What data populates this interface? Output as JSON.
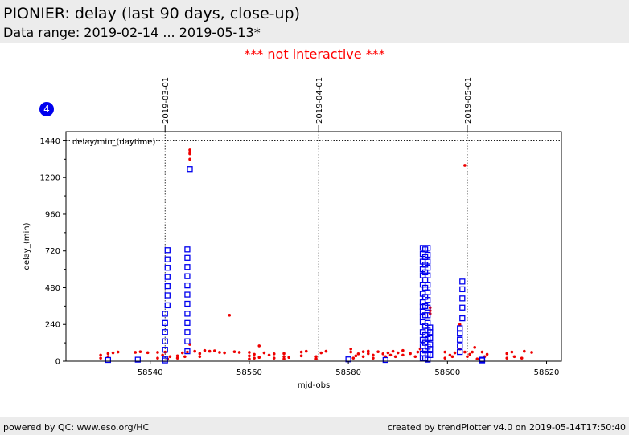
{
  "header": {
    "title": "PIONIER: delay (last 90 days, close-up)",
    "subtitle": "Data range: 2019-02-14 ... 2019-05-13*"
  },
  "notice": "*** not interactive ***",
  "badge": "4",
  "footer": {
    "left": "powered by QC: www.eso.org/HC",
    "right": "created by trendPlotter v4.0 on 2019-05-14T17:50:40"
  },
  "chart_data": {
    "type": "scatter",
    "title": "delay/min_(daytime)",
    "xlabel": "mjd-obs",
    "ylabel": "delay_(min)",
    "xlim": [
      58523,
      58623
    ],
    "ylim": [
      0,
      1500
    ],
    "xticks": [
      58540,
      58560,
      58580,
      58600,
      58620
    ],
    "yticks": [
      0,
      240,
      480,
      720,
      960,
      1200,
      1440
    ],
    "hlines": [
      1440,
      60
    ],
    "date_markers": [
      {
        "label": "2019-03-01",
        "mjd": 58543
      },
      {
        "label": "2019-04-01",
        "mjd": 58574
      },
      {
        "label": "2019-05-01",
        "mjd": 58604
      }
    ],
    "colors": {
      "daytime": "#ee0000",
      "nighttime": "#0000ee"
    },
    "series": [
      {
        "marker": "dot",
        "color": "#ee0000",
        "points": [
          [
            58530,
            20
          ],
          [
            58530,
            40
          ],
          [
            58531.5,
            30
          ],
          [
            58531.5,
            50
          ],
          [
            58532.5,
            55
          ],
          [
            58533.5,
            60
          ],
          [
            58537,
            58
          ],
          [
            58538,
            62
          ],
          [
            58539.5,
            56
          ],
          [
            58541.5,
            20
          ],
          [
            58541.5,
            58
          ],
          [
            58542.5,
            40
          ],
          [
            58543,
            60
          ],
          [
            58543.5,
            15
          ],
          [
            58544,
            30
          ],
          [
            58545.5,
            20
          ],
          [
            58545.5,
            35
          ],
          [
            58546.5,
            55
          ],
          [
            58547,
            30
          ],
          [
            58547.5,
            60
          ],
          [
            58548,
            1380
          ],
          [
            58548,
            1365
          ],
          [
            58548,
            1355
          ],
          [
            58548,
            1320
          ],
          [
            58548,
            110
          ],
          [
            58549,
            65
          ],
          [
            58550,
            30
          ],
          [
            58550,
            50
          ],
          [
            58551,
            70
          ],
          [
            58552,
            65
          ],
          [
            58553,
            68
          ],
          [
            58554,
            58
          ],
          [
            58555,
            55
          ],
          [
            58556,
            300
          ],
          [
            58557,
            62
          ],
          [
            58558,
            58
          ],
          [
            58560,
            15
          ],
          [
            58560,
            35
          ],
          [
            58560,
            58
          ],
          [
            58561,
            20
          ],
          [
            58561,
            45
          ],
          [
            58562,
            100
          ],
          [
            58562,
            25
          ],
          [
            58563,
            55
          ],
          [
            58564,
            40
          ],
          [
            58565,
            20
          ],
          [
            58565,
            48
          ],
          [
            58567,
            15
          ],
          [
            58567,
            30
          ],
          [
            58567,
            50
          ],
          [
            58568,
            25
          ],
          [
            58570.5,
            35
          ],
          [
            58570.5,
            60
          ],
          [
            58571.5,
            65
          ],
          [
            58573.5,
            15
          ],
          [
            58573.5,
            30
          ],
          [
            58574.5,
            55
          ],
          [
            58575.5,
            65
          ],
          [
            58580.5,
            80
          ],
          [
            58580.5,
            60
          ],
          [
            58581,
            20
          ],
          [
            58581.5,
            35
          ],
          [
            58582,
            48
          ],
          [
            58583,
            30
          ],
          [
            58583,
            62
          ],
          [
            58584,
            50
          ],
          [
            58584,
            66
          ],
          [
            58585,
            20
          ],
          [
            58585,
            40
          ],
          [
            58586,
            62
          ],
          [
            58587,
            48
          ],
          [
            58587.5,
            30
          ],
          [
            58588,
            55
          ],
          [
            58588.5,
            40
          ],
          [
            58589,
            65
          ],
          [
            58589.5,
            30
          ],
          [
            58590,
            55
          ],
          [
            58591,
            70
          ],
          [
            58591,
            40
          ],
          [
            58592.5,
            50
          ],
          [
            58593.5,
            30
          ],
          [
            58594,
            60
          ],
          [
            58594.5,
            80
          ],
          [
            58596.5,
            350
          ],
          [
            58596.5,
            330
          ],
          [
            58596.5,
            310
          ],
          [
            58599.5,
            20
          ],
          [
            58599.5,
            60
          ],
          [
            58600.5,
            40
          ],
          [
            58601,
            30
          ],
          [
            58601.5,
            55
          ],
          [
            58602.5,
            240
          ],
          [
            58602.5,
            80
          ],
          [
            58603.5,
            1280
          ],
          [
            58603.5,
            60
          ],
          [
            58604,
            30
          ],
          [
            58604.5,
            45
          ],
          [
            58605,
            60
          ],
          [
            58605.5,
            90
          ],
          [
            58606,
            15
          ],
          [
            58607,
            60
          ],
          [
            58607.5,
            30
          ],
          [
            58608,
            45
          ],
          [
            58612,
            20
          ],
          [
            58612,
            50
          ],
          [
            58613,
            60
          ],
          [
            58613.5,
            30
          ],
          [
            58615,
            20
          ],
          [
            58615.5,
            65
          ],
          [
            58617,
            58
          ]
        ]
      },
      {
        "marker": "square",
        "color": "#0000ee",
        "points": [
          [
            58531.5,
            8
          ],
          [
            58537.5,
            10
          ],
          [
            58543,
            5
          ],
          [
            58543,
            15
          ],
          [
            58543,
            75
          ],
          [
            58543,
            130
          ],
          [
            58543,
            190
          ],
          [
            58543,
            250
          ],
          [
            58543,
            310
          ],
          [
            58543.5,
            365
          ],
          [
            58543.5,
            430
          ],
          [
            58543.5,
            490
          ],
          [
            58543.5,
            550
          ],
          [
            58543.5,
            610
          ],
          [
            58543.5,
            665
          ],
          [
            58543.5,
            725
          ],
          [
            58547.5,
            65
          ],
          [
            58547.5,
            130
          ],
          [
            58547.5,
            190
          ],
          [
            58547.5,
            250
          ],
          [
            58547.5,
            310
          ],
          [
            58547.5,
            375
          ],
          [
            58547.5,
            435
          ],
          [
            58547.5,
            495
          ],
          [
            58547.5,
            555
          ],
          [
            58547.5,
            615
          ],
          [
            58547.5,
            675
          ],
          [
            58547.5,
            730
          ],
          [
            58548,
            1255
          ],
          [
            58580,
            12
          ],
          [
            58587.5,
            8
          ],
          [
            58595,
            20
          ],
          [
            58595,
            50
          ],
          [
            58595,
            100
          ],
          [
            58595,
            140
          ],
          [
            58595,
            190
          ],
          [
            58595,
            255
          ],
          [
            58595,
            290
          ],
          [
            58595,
            325
          ],
          [
            58595,
            355
          ],
          [
            58595,
            385
          ],
          [
            58595,
            440
          ],
          [
            58595,
            500
          ],
          [
            58595,
            560
          ],
          [
            58595,
            600
          ],
          [
            58595,
            650
          ],
          [
            58595,
            700
          ],
          [
            58595,
            740
          ],
          [
            58595.5,
            20
          ],
          [
            58595.5,
            70
          ],
          [
            58595.5,
            120
          ],
          [
            58595.5,
            170
          ],
          [
            58595.5,
            230
          ],
          [
            58595.5,
            300
          ],
          [
            58595.5,
            360
          ],
          [
            58595.5,
            420
          ],
          [
            58595.5,
            480
          ],
          [
            58595.5,
            530
          ],
          [
            58595.5,
            580
          ],
          [
            58595.5,
            630
          ],
          [
            58595.5,
            680
          ],
          [
            58595.5,
            730
          ],
          [
            58596,
            10
          ],
          [
            58596,
            50
          ],
          [
            58596,
            95
          ],
          [
            58596,
            145
          ],
          [
            58596,
            200
          ],
          [
            58596,
            250
          ],
          [
            58596,
            300
          ],
          [
            58596,
            350
          ],
          [
            58596,
            400
          ],
          [
            58596,
            450
          ],
          [
            58596,
            500
          ],
          [
            58596,
            560
          ],
          [
            58596,
            610
          ],
          [
            58596,
            650
          ],
          [
            58596,
            695
          ],
          [
            58596,
            740
          ],
          [
            58596.5,
            40
          ],
          [
            58596.5,
            80
          ],
          [
            58596.5,
            110
          ],
          [
            58596.5,
            150
          ],
          [
            58596.5,
            190
          ],
          [
            58596.5,
            220
          ],
          [
            58602.5,
            60
          ],
          [
            58602.5,
            100
          ],
          [
            58602.5,
            140
          ],
          [
            58602.5,
            180
          ],
          [
            58602.5,
            215
          ],
          [
            58603,
            280
          ],
          [
            58603,
            350
          ],
          [
            58603,
            410
          ],
          [
            58603,
            470
          ],
          [
            58603,
            520
          ],
          [
            58607,
            5
          ],
          [
            58607,
            10
          ]
        ]
      }
    ]
  }
}
